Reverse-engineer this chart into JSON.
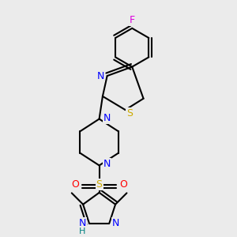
{
  "background_color": "#ebebeb",
  "atom_colors": {
    "C": "#000000",
    "N": "#0000ff",
    "S": "#ccaa00",
    "O": "#ff0000",
    "F": "#dd00dd",
    "H": "#008080"
  },
  "figsize": [
    3.0,
    3.0
  ],
  "dpi": 100
}
